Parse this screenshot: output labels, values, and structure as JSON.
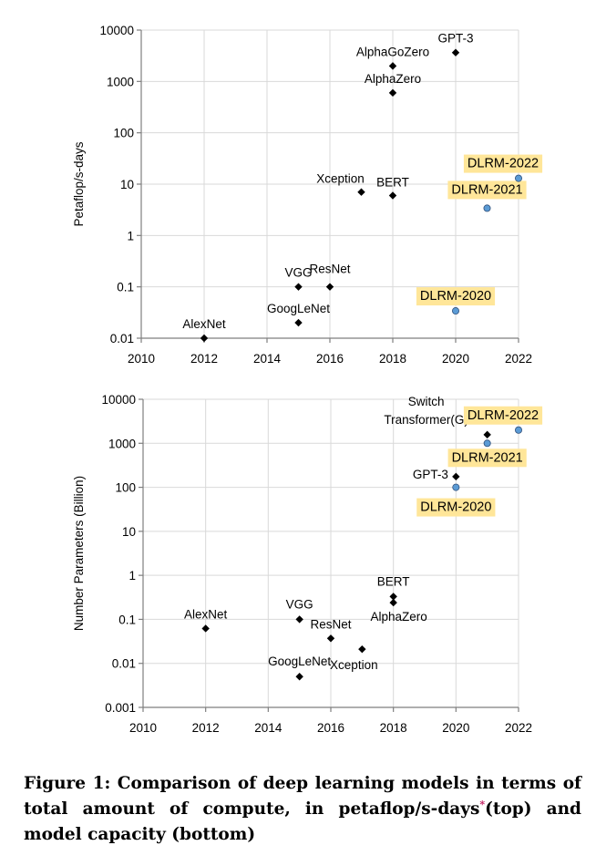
{
  "caption": {
    "text_before": "Figure 1: Comparison of deep learning models in terms of total amount of compute, in petaflop/s-days",
    "marker": "*",
    "text_after": "(top) and model capacity (bottom)"
  },
  "chart_data": [
    {
      "type": "scatter",
      "title": "",
      "xlabel": "",
      "ylabel": "Petaflop/s-days",
      "yscale": "log",
      "xlim": [
        2010,
        2022
      ],
      "ylim": [
        0.01,
        10000
      ],
      "x_ticks": [
        "2010",
        "2012",
        "2014",
        "2016",
        "2018",
        "2020",
        "2022"
      ],
      "y_ticks": [
        "0.01",
        "0.1",
        "1",
        "10",
        "100",
        "1000",
        "10000"
      ],
      "grid": true,
      "series": [
        {
          "marker": "diamond",
          "color": "#000000",
          "points": [
            {
              "label": "AlexNet",
              "x": 2012,
              "y": 0.01
            },
            {
              "label": "VGG",
              "x": 2015,
              "y": 0.1
            },
            {
              "label": "GoogLeNet",
              "x": 2015,
              "y": 0.02
            },
            {
              "label": "ResNet",
              "x": 2016,
              "y": 0.1
            },
            {
              "label": "Xception",
              "x": 2017,
              "y": 7
            },
            {
              "label": "BERT",
              "x": 2018,
              "y": 6
            },
            {
              "label": "AlphaGoZero",
              "x": 2018,
              "y": 2000
            },
            {
              "label": "AlphaZero",
              "x": 2018,
              "y": 600
            },
            {
              "label": "GPT-3",
              "x": 2020,
              "y": 3640
            }
          ]
        },
        {
          "marker": "circle",
          "color": "#5b9bd5",
          "label_highlight": "#ffe699",
          "points": [
            {
              "label": "DLRM-2020",
              "x": 2020,
              "y": 0.034
            },
            {
              "label": "DLRM-2021",
              "x": 2021,
              "y": 3.4
            },
            {
              "label": "DLRM-2022",
              "x": 2022,
              "y": 13
            }
          ]
        }
      ]
    },
    {
      "type": "scatter",
      "title": "",
      "xlabel": "",
      "ylabel": "Number Parameters (Billion)",
      "yscale": "log",
      "xlim": [
        2010,
        2022
      ],
      "ylim": [
        0.001,
        10000
      ],
      "x_ticks": [
        "2010",
        "2012",
        "2014",
        "2016",
        "2018",
        "2020",
        "2022"
      ],
      "y_ticks": [
        "0.001",
        "0.01",
        "0.1",
        "1",
        "10",
        "100",
        "1000",
        "10000"
      ],
      "grid": true,
      "series": [
        {
          "marker": "diamond",
          "color": "#000000",
          "points": [
            {
              "label": "AlexNet",
              "x": 2012,
              "y": 0.062
            },
            {
              "label": "VGG",
              "x": 2015,
              "y": 0.1
            },
            {
              "label": "GoogLeNet",
              "x": 2015,
              "y": 0.005
            },
            {
              "label": "ResNet",
              "x": 2016,
              "y": 0.037
            },
            {
              "label": "Xception",
              "x": 2017,
              "y": 0.021
            },
            {
              "label": "BERT",
              "x": 2018,
              "y": 0.33
            },
            {
              "label": "AlphaZero",
              "x": 2018,
              "y": 0.24
            },
            {
              "label": "GPT-3",
              "x": 2020,
              "y": 175
            },
            {
              "label": "Switch Transformer(G)",
              "x": 2021,
              "y": 1570
            }
          ]
        },
        {
          "marker": "circle",
          "color": "#5b9bd5",
          "label_highlight": "#ffe699",
          "points": [
            {
              "label": "DLRM-2020",
              "x": 2020,
              "y": 100
            },
            {
              "label": "DLRM-2021",
              "x": 2021,
              "y": 1000
            },
            {
              "label": "DLRM-2022",
              "x": 2022,
              "y": 2000
            }
          ]
        }
      ]
    }
  ]
}
